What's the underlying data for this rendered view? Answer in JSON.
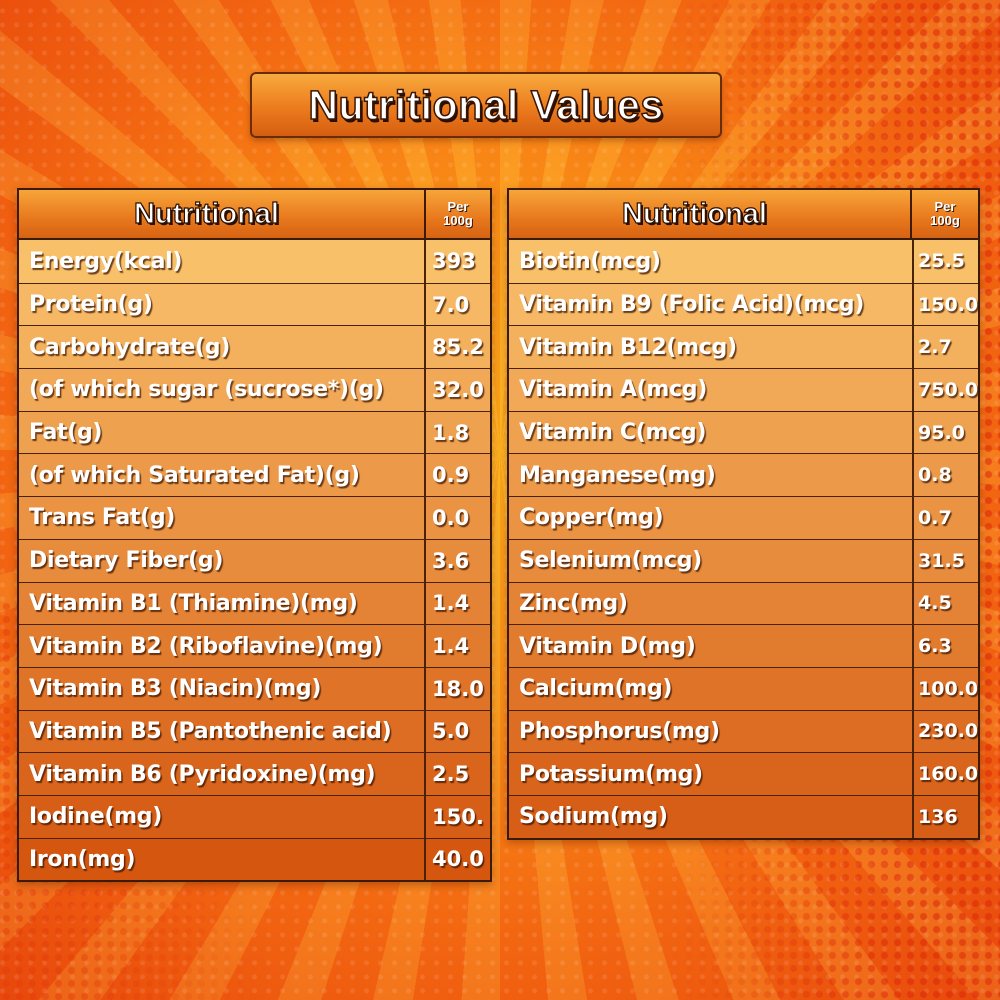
{
  "title": "Nutritional Values",
  "left_table": {
    "header": {
      "name": "Nutritional",
      "per_line1": "Per",
      "per_line2": "100g"
    },
    "rows": [
      {
        "label": "Energy(kcal)",
        "value": "393"
      },
      {
        "label": "Protein(g)",
        "value": "7.0"
      },
      {
        "label": "Carbohydrate(g)",
        "value": "85.2"
      },
      {
        "label": "(of which sugar (sucrose*)(g)",
        "value": "32.0"
      },
      {
        "label": "Fat(g)",
        "value": "1.8"
      },
      {
        "label": "(of which Saturated Fat)(g)",
        "value": "0.9"
      },
      {
        "label": "Trans Fat(g)",
        "value": "0.0"
      },
      {
        "label": "Dietary Fiber(g)",
        "value": "3.6"
      },
      {
        "label": "Vitamin B1 (Thiamine)(mg)",
        "value": "1.4"
      },
      {
        "label": "Vitamin B2 (Riboflavine)(mg)",
        "value": "1.4"
      },
      {
        "label": "Vitamin B3 (Niacin)(mg)",
        "value": "18.0"
      },
      {
        "label": "Vitamin B5 (Pantothenic acid)",
        "value": "5.0"
      },
      {
        "label": "Vitamin B6 (Pyridoxine)(mg)",
        "value": "2.5"
      },
      {
        "label": "Iodine(mg)",
        "value": "150."
      },
      {
        "label": "Iron(mg)",
        "value": "40.0"
      }
    ]
  },
  "right_table": {
    "header": {
      "name": "Nutritional",
      "per_line1": "Per",
      "per_line2": "100g"
    },
    "rows": [
      {
        "label": "Biotin(mcg)",
        "value": "25.5"
      },
      {
        "label": "Vitamin B9 (Folic Acid)(mcg)",
        "value": "150.0"
      },
      {
        "label": "Vitamin B12(mcg)",
        "value": "2.7"
      },
      {
        "label": "Vitamin A(mcg)",
        "value": "750.0"
      },
      {
        "label": "Vitamin C(mcg)",
        "value": "95.0"
      },
      {
        "label": "Manganese(mg)",
        "value": "0.8"
      },
      {
        "label": "Copper(mg)",
        "value": "0.7"
      },
      {
        "label": "Selenium(mcg)",
        "value": "31.5"
      },
      {
        "label": "Zinc(mg)",
        "value": "4.5"
      },
      {
        "label": "Vitamin D(mg)",
        "value": "6.3"
      },
      {
        "label": "Calcium(mg)",
        "value": "100.0"
      },
      {
        "label": "Phosphorus(mg)",
        "value": "230.0"
      },
      {
        "label": "Potassium(mg)",
        "value": "160.0"
      },
      {
        "label": "Sodium(mg)",
        "value": "136"
      }
    ]
  },
  "colors": {
    "row_light": "#f9c06a",
    "row_dark": "#d4560f",
    "border": "#3b1a06",
    "text": "#ffffff"
  }
}
